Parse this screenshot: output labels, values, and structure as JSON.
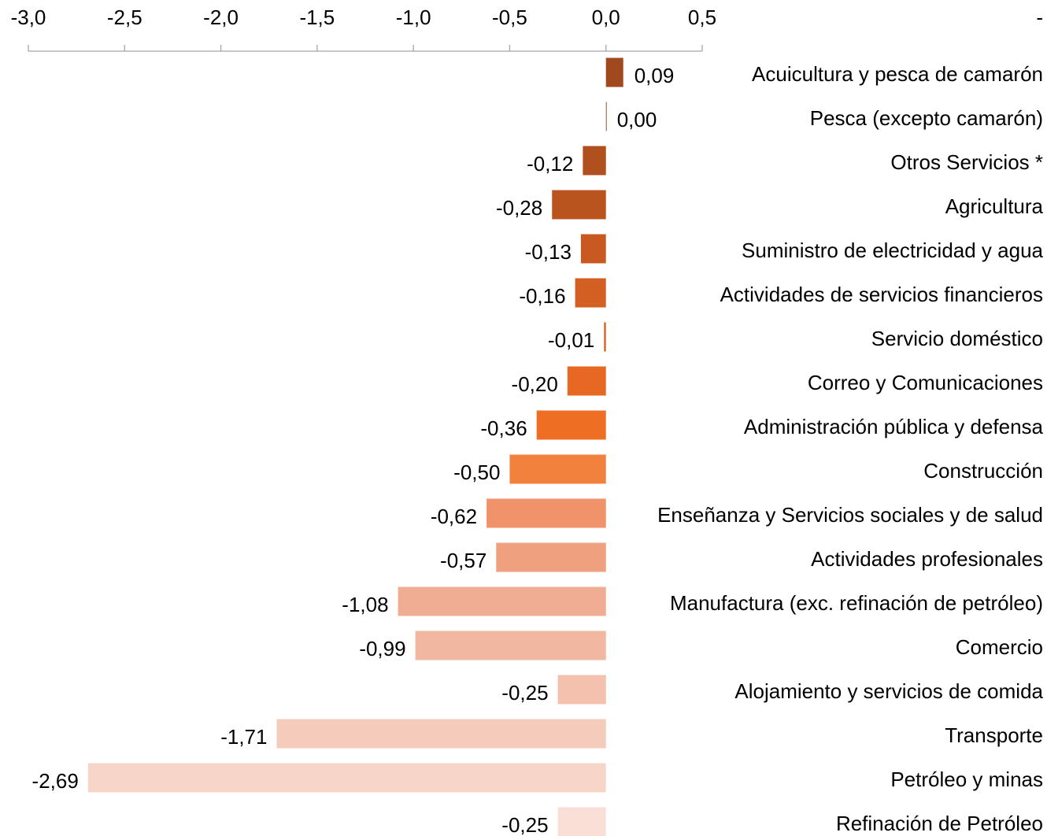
{
  "chart_data": {
    "type": "hbar",
    "categories": [
      "Acuicultura y pesca de camarón",
      "Pesca (excepto camarón)",
      "Otros Servicios *",
      "Agricultura",
      "Suministro de electricidad y agua",
      "Actividades de servicios financieros",
      "Servicio doméstico",
      "Correo y Comunicaciones",
      "Administración pública y defensa",
      "Construcción",
      "Enseñanza  y Servicios sociales y de salud",
      "Actividades profesionales",
      "Manufactura (exc. refinación de petróleo)",
      "Comercio",
      "Alojamiento y servicios de comida",
      "Transporte",
      "Petróleo y minas",
      "Refinación de Petróleo"
    ],
    "values": [
      0.09,
      0.0,
      -0.12,
      -0.28,
      -0.13,
      -0.16,
      -0.01,
      -0.2,
      -0.36,
      -0.5,
      -0.62,
      -0.57,
      -1.08,
      -0.99,
      -0.25,
      -1.71,
      -2.69,
      -0.25
    ],
    "value_labels": [
      "0,09",
      "0,00",
      "-0,12",
      "-0,28",
      "-0,13",
      "-0,16",
      "-0,01",
      "-0,20",
      "-0,36",
      "-0,50",
      "-0,62",
      "-0,57",
      "-1,08",
      "-0,99",
      "-0,25",
      "-1,71",
      "-2,69",
      "-0,25"
    ],
    "colors": [
      "#a0491e",
      "#a64c1f",
      "#b0501f",
      "#b9541f",
      "#c85a21",
      "#d35f22",
      "#dd6322",
      "#e66823",
      "#ee6e23",
      "#f2813e",
      "#f0936a",
      "#efa07f",
      "#f1ad93",
      "#f2b7a1",
      "#f3c1ae",
      "#f5cbbc",
      "#f7d5c9",
      "#f9dfd6"
    ],
    "xlim": [
      -3.0,
      0.5
    ],
    "xticks": [
      {
        "value": -3.0,
        "label": "-3,0"
      },
      {
        "value": -2.5,
        "label": "-2,5"
      },
      {
        "value": -2.0,
        "label": "-2,0"
      },
      {
        "value": -1.5,
        "label": "-1,5"
      },
      {
        "value": -1.0,
        "label": "-1,0"
      },
      {
        "value": -0.5,
        "label": "-0,5"
      },
      {
        "value": 0,
        "label": "0,0"
      },
      {
        "value": 0.5,
        "label": "0,5"
      }
    ],
    "annotation": "-"
  }
}
